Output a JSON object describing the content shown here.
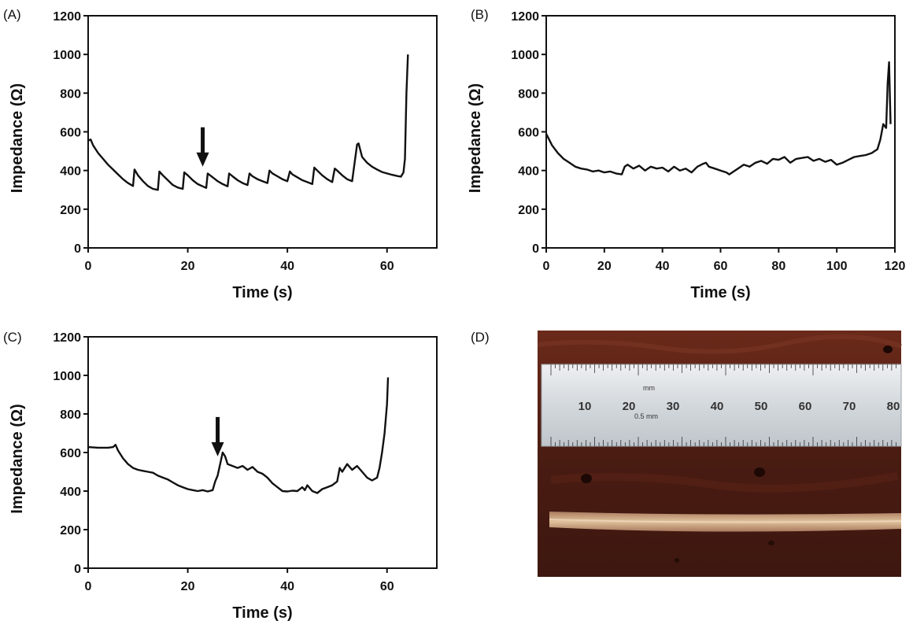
{
  "panels": {
    "A": {
      "label": "(A)"
    },
    "B": {
      "label": "(B)"
    },
    "C": {
      "label": "(C)"
    },
    "D": {
      "label": "(D)"
    }
  },
  "photo": {
    "ruler_numbers": [
      "10",
      "20",
      "30",
      "40",
      "50",
      "60",
      "70",
      "80"
    ],
    "ruler_unit": "mm",
    "ruler_sub_unit": "0.5 mm"
  },
  "colors": {
    "line": "#111111",
    "tissue": "#5a2418",
    "lesion": "#d6b28c",
    "ruler": "#d9dde0"
  },
  "chart_data": [
    {
      "panel": "A",
      "type": "line",
      "xlabel": "Time (s)",
      "ylabel": "Impedance (Ω)",
      "xlim": [
        0,
        70
      ],
      "ylim": [
        0,
        1200
      ],
      "xticks": [
        0,
        20,
        40,
        60
      ],
      "yticks": [
        0,
        200,
        400,
        600,
        800,
        1000,
        1200
      ],
      "grid": false,
      "annotations": [
        {
          "type": "arrow",
          "x": 23,
          "y": 420
        }
      ],
      "series": [
        {
          "x": [
            0,
            0.5,
            1,
            2,
            3,
            4,
            5,
            6,
            7,
            8,
            9,
            9.3,
            10,
            11,
            12,
            13,
            14,
            14.3,
            15,
            16,
            17,
            18,
            19,
            19.3,
            20,
            21,
            22,
            23,
            23.7,
            24,
            25,
            26,
            27,
            28,
            28.3,
            29,
            30,
            31,
            32,
            32.4,
            33,
            34,
            35,
            36,
            36.4,
            37,
            38,
            39,
            40,
            40.5,
            41,
            42,
            43,
            44,
            45,
            45.4,
            46,
            47,
            48,
            49,
            49.5,
            50,
            51,
            52,
            53,
            54,
            54.3,
            55,
            56,
            57,
            58,
            59,
            60,
            61,
            62,
            62.8,
            63.3,
            63.6,
            63.9,
            64.2
          ],
          "y": [
            555,
            560,
            530,
            490,
            460,
            430,
            405,
            380,
            355,
            335,
            320,
            405,
            375,
            345,
            320,
            305,
            300,
            395,
            375,
            350,
            325,
            312,
            305,
            390,
            375,
            350,
            330,
            318,
            310,
            385,
            365,
            345,
            330,
            318,
            385,
            370,
            350,
            335,
            325,
            385,
            370,
            355,
            345,
            335,
            400,
            385,
            370,
            355,
            345,
            395,
            380,
            365,
            350,
            340,
            330,
            415,
            400,
            375,
            355,
            340,
            410,
            400,
            375,
            355,
            345,
            535,
            540,
            470,
            440,
            420,
            405,
            392,
            385,
            378,
            372,
            368,
            390,
            460,
            800,
            1000
          ]
        }
      ]
    },
    {
      "panel": "B",
      "type": "line",
      "xlabel": "Time (s)",
      "ylabel": "Impedance (Ω)",
      "xlim": [
        0,
        120
      ],
      "ylim": [
        0,
        1200
      ],
      "xticks": [
        0,
        20,
        40,
        60,
        80,
        100,
        120
      ],
      "yticks": [
        0,
        200,
        400,
        600,
        800,
        1000,
        1200
      ],
      "grid": false,
      "series": [
        {
          "x": [
            0,
            1,
            2,
            4,
            6,
            8,
            10,
            12,
            14,
            16,
            18,
            20,
            22,
            24,
            26,
            27,
            28,
            30,
            32,
            34,
            36,
            38,
            40,
            42,
            44,
            46,
            48,
            50,
            52,
            54,
            55,
            56,
            58,
            60,
            62,
            63,
            64,
            66,
            68,
            70,
            72,
            74,
            76,
            78,
            80,
            82,
            84,
            86,
            88,
            90,
            92,
            94,
            96,
            98,
            100,
            102,
            104,
            106,
            108,
            110,
            112,
            114,
            115,
            116,
            117,
            117.5,
            118,
            118.5
          ],
          "y": [
            590,
            560,
            530,
            490,
            460,
            440,
            420,
            410,
            405,
            395,
            400,
            390,
            395,
            385,
            380,
            420,
            430,
            410,
            425,
            400,
            420,
            410,
            415,
            395,
            420,
            400,
            410,
            390,
            420,
            435,
            440,
            420,
            410,
            400,
            390,
            380,
            390,
            410,
            430,
            420,
            440,
            450,
            435,
            460,
            455,
            470,
            440,
            460,
            465,
            470,
            450,
            460,
            445,
            455,
            430,
            440,
            455,
            470,
            475,
            480,
            490,
            510,
            560,
            640,
            620,
            850,
            960,
            640
          ]
        }
      ]
    },
    {
      "panel": "C",
      "type": "line",
      "xlabel": "Time (s)",
      "ylabel": "Impedance (Ω)",
      "xlim": [
        0,
        70
      ],
      "ylim": [
        0,
        1200
      ],
      "xticks": [
        0,
        20,
        40,
        60
      ],
      "yticks": [
        0,
        200,
        400,
        600,
        800,
        1000,
        1200
      ],
      "grid": false,
      "annotations": [
        {
          "type": "arrow",
          "x": 26,
          "y": 580
        }
      ],
      "series": [
        {
          "x": [
            0,
            2,
            4,
            5,
            5.5,
            6,
            7,
            8,
            9,
            10,
            11,
            12,
            13,
            14,
            15,
            16,
            17,
            18,
            19,
            20,
            21,
            22,
            23,
            24,
            25,
            25.5,
            26,
            26.5,
            27,
            27.5,
            28,
            29,
            30,
            31,
            32,
            33,
            34,
            35,
            36,
            37,
            38,
            39,
            40,
            41,
            42,
            43,
            43.5,
            44,
            45,
            46,
            47,
            48,
            49,
            50,
            50.5,
            51,
            52,
            53,
            54,
            55,
            56,
            57,
            58,
            58.5,
            59,
            59.5,
            60,
            60.2
          ],
          "y": [
            628,
            625,
            625,
            628,
            640,
            610,
            570,
            540,
            520,
            510,
            505,
            500,
            495,
            480,
            470,
            460,
            445,
            430,
            420,
            410,
            405,
            400,
            405,
            398,
            405,
            450,
            480,
            540,
            600,
            580,
            540,
            530,
            520,
            530,
            510,
            525,
            500,
            490,
            470,
            440,
            420,
            400,
            398,
            402,
            400,
            420,
            405,
            430,
            400,
            390,
            410,
            420,
            430,
            450,
            520,
            500,
            540,
            510,
            530,
            500,
            470,
            455,
            470,
            520,
            600,
            700,
            850,
            990
          ]
        }
      ]
    }
  ]
}
